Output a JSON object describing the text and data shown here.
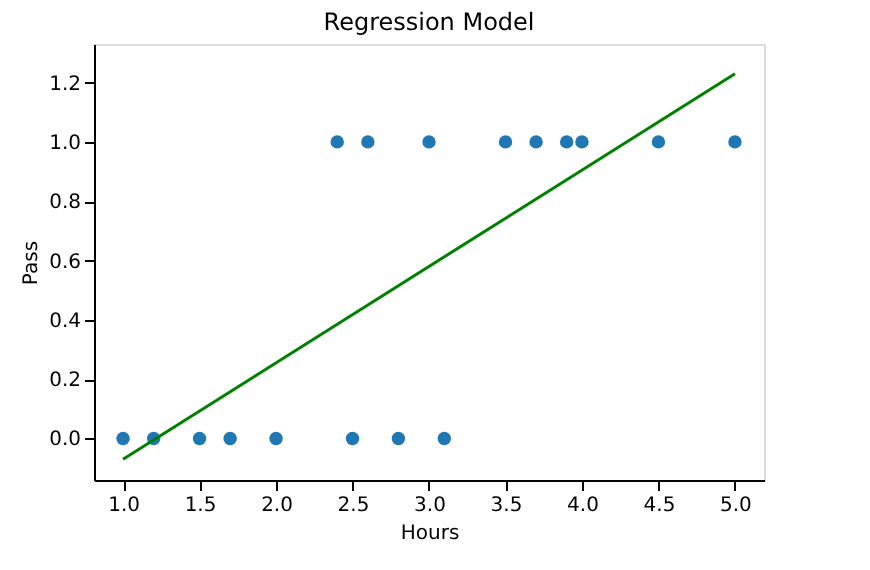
{
  "chart_data": {
    "type": "scatter",
    "title": "Regression Model",
    "xlabel": "Hours",
    "ylabel": "Pass",
    "series": [
      {
        "type": "scatter",
        "color": "#1f77b4",
        "marker": "circle",
        "x": [
          1.0,
          1.2,
          1.5,
          1.7,
          2.0,
          2.5,
          2.8,
          3.1,
          2.4,
          2.6,
          3.0,
          3.5,
          3.7,
          3.9,
          4.0,
          4.5,
          5.0
        ],
        "values": [
          0,
          0,
          0,
          0,
          0,
          0,
          0,
          0,
          1,
          1,
          1,
          1,
          1,
          1,
          1,
          1,
          1
        ]
      },
      {
        "type": "line",
        "color": "#008000",
        "line_style": "solid",
        "x": [
          1.0,
          5.0
        ],
        "values": [
          -0.07,
          1.23
        ]
      }
    ],
    "xlim": [
      0.81,
      5.19
    ],
    "ylim": [
      -0.14,
      1.33
    ],
    "xticks": [
      {
        "value": 1,
        "label": "1.0"
      },
      1.5,
      {
        "value": 2,
        "label": "2.0"
      },
      2.5,
      {
        "value": 3,
        "label": "3.0"
      },
      3.5,
      {
        "value": 4,
        "label": "4.0"
      },
      4.5,
      {
        "value": 5,
        "label": "5.0"
      }
    ],
    "yticks": [
      {
        "value": 0,
        "label": "0.0"
      },
      0.2,
      0.4,
      0.6,
      0.8,
      {
        "value": 1,
        "label": "1.0"
      },
      1.2
    ],
    "grid": false,
    "legend": false
  }
}
